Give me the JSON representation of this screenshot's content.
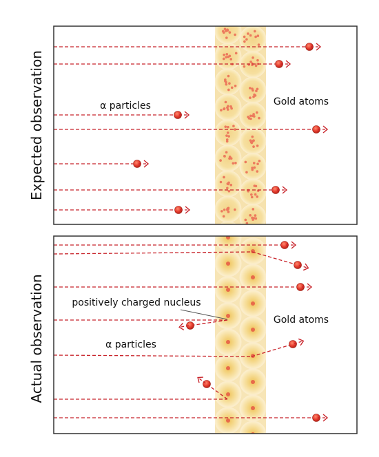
{
  "top_panel": {
    "side_label": "Expected observation",
    "particles_label": "α particles",
    "gold_label": "Gold atoms"
  },
  "bottom_panel": {
    "side_label": "Actual observation",
    "nucleus_label": "positively charged nucleus",
    "particles_label": "α particles",
    "gold_label": "Gold atoms"
  },
  "colors": {
    "particle": "#e53b2e",
    "path": "#c8232a",
    "gold_band": "#f6e2ae",
    "nucleus": "#e86a4a",
    "frame": "#333333"
  }
}
